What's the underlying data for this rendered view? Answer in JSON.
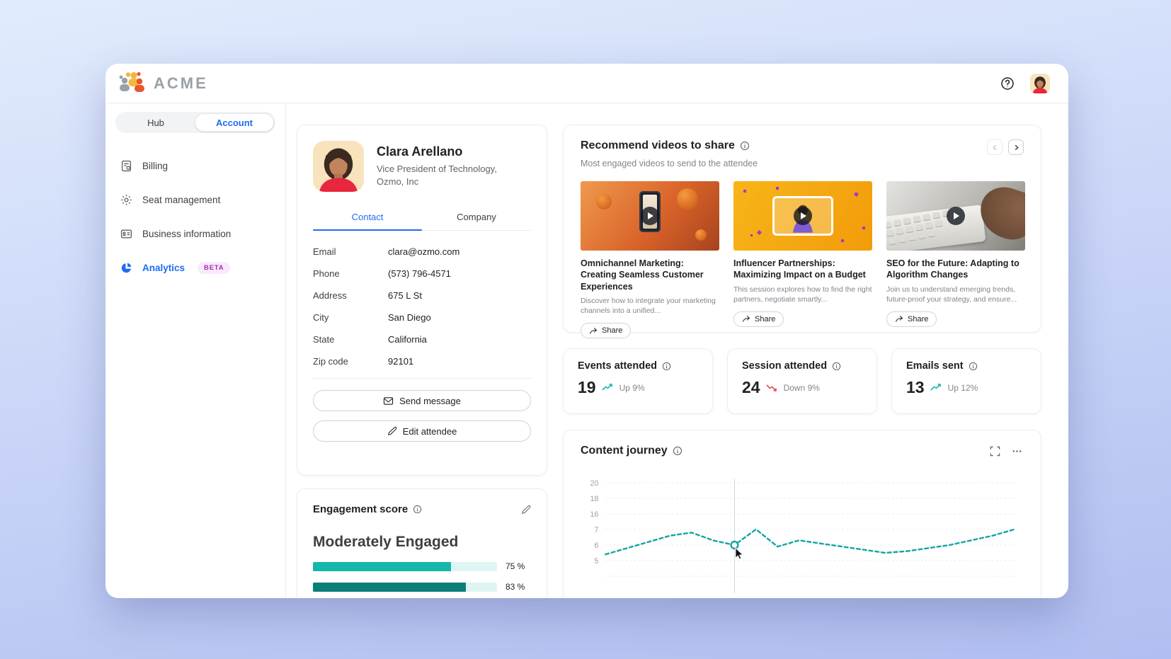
{
  "colors": {
    "accent_blue": "#1f6cf1",
    "teal": "#14b8ab",
    "teal_dark": "#0a7f78",
    "trend_red": "#e5484d",
    "beta_purple": "#a62bb5"
  },
  "header": {
    "brand": "ACME"
  },
  "sidebar": {
    "toggle": {
      "hub": "Hub",
      "account": "Account"
    },
    "items": [
      {
        "label": "Billing"
      },
      {
        "label": "Seat management"
      },
      {
        "label": "Business information"
      },
      {
        "label": "Analytics",
        "badge": "BETA"
      }
    ]
  },
  "contact_card": {
    "name": "Clara Arellano",
    "role_line1": "Vice President of Technology,",
    "role_line2": "Ozmo, Inc",
    "tabs": {
      "contact": "Contact",
      "company": "Company"
    },
    "fields": [
      {
        "label": "Email",
        "value": "clara@ozmo.com"
      },
      {
        "label": "Phone",
        "value": "(573) 796-4571"
      },
      {
        "label": "Address",
        "value": "675 L St"
      },
      {
        "label": "City",
        "value": "San Diego"
      },
      {
        "label": "State",
        "value": "California"
      },
      {
        "label": "Zip code",
        "value": "92101"
      }
    ],
    "buttons": {
      "send": "Send message",
      "edit": "Edit attendee"
    }
  },
  "engagement": {
    "title": "Engagement score",
    "level": "Moderately Engaged",
    "bars": [
      {
        "percent": 75,
        "label": "75 %",
        "color": "#14b8ab"
      },
      {
        "percent": 83,
        "label": "83 %",
        "color": "#0a7f78"
      }
    ]
  },
  "videos": {
    "title": "Recommend videos to share",
    "subtitle": "Most engaged videos to send to the attendee",
    "items": [
      {
        "title": "Omnichannel Marketing: Creating Seamless Customer Experiences",
        "description": "Discover how to integrate your marketing channels into a unified...",
        "share_label": "Share"
      },
      {
        "title": "Influencer Partnerships: Maximizing Impact on a Budget",
        "description": "This session explores how to find the right partners, negotiate smartly...",
        "share_label": "Share"
      },
      {
        "title": "SEO for the Future: Adapting to Algorithm Changes",
        "description": "Join us to understand emerging trends, future-proof your strategy, and ensure...",
        "share_label": "Share"
      }
    ]
  },
  "stats": [
    {
      "title": "Events attended",
      "value": "19",
      "trend": "up",
      "trend_label": "Up 9%"
    },
    {
      "title": "Session attended",
      "value": "24",
      "trend": "down",
      "trend_label": "Down 9%"
    },
    {
      "title": "Emails sent",
      "value": "13",
      "trend": "up",
      "trend_label": "Up 12%"
    }
  ],
  "chart_data": {
    "type": "line",
    "title": "Content journey",
    "style": "dashed",
    "grid": true,
    "line_color": "#12a5a0",
    "y_ticks": [
      20,
      18,
      16,
      7,
      6,
      5
    ],
    "values": [
      5.4,
      5.8,
      6.2,
      6.6,
      6.8,
      6.3,
      6.0,
      7.1,
      5.9,
      6.3,
      6.1,
      5.9,
      5.7,
      5.5,
      5.6,
      5.8,
      6.0,
      6.3,
      6.6,
      7.0
    ],
    "hover_index": 6,
    "hover_value": 6.0
  }
}
